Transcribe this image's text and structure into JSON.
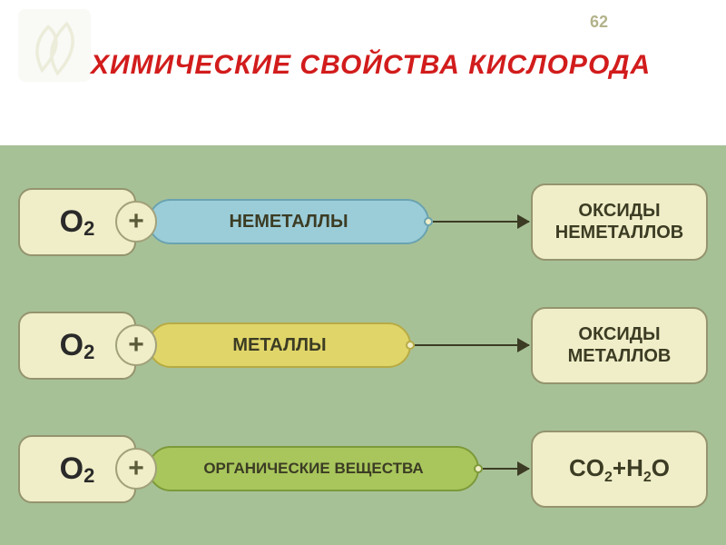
{
  "page_number": "62",
  "deco_bg": "#f9f9f5",
  "deco_stroke": "#ececda",
  "title_text": "ХИМИЧЕСКИЕ СВОЙСТВА КИСЛОРОДА",
  "title_color": "#d21c1c",
  "diagram_bg": "#a7c197",
  "o2_label_main": "O",
  "o2_label_sub": "2",
  "o2_box_bg": "#f0eec8",
  "o2_box_border": "#94946e",
  "plus_symbol": "+",
  "product_box_bg": "#f0eec8",
  "product_box_border": "#94946e",
  "rows": [
    {
      "pill_text": "НЕМЕТАЛЛЫ",
      "pill_bg": "#9bcdd9",
      "pill_border": "#6aa3b0",
      "pill_width": 310,
      "pill_fontsize": 20,
      "product_lines": [
        "ОКСИДЫ",
        "НЕМЕТАЛЛОВ"
      ],
      "product_formula": false
    },
    {
      "pill_text": "МЕТАЛЛЫ",
      "pill_bg": "#e0d569",
      "pill_border": "#b7ab45",
      "pill_width": 290,
      "pill_fontsize": 20,
      "product_lines": [
        "ОКСИДЫ",
        "МЕТАЛЛОВ"
      ],
      "product_formula": false
    },
    {
      "pill_text": "ОРГАНИЧЕСКИЕ ВЕЩЕСТВА",
      "pill_bg": "#a8c65c",
      "pill_border": "#7d9a3a",
      "pill_width": 365,
      "pill_fontsize": 17,
      "product_formula": true,
      "formula_parts": [
        "CO",
        "2",
        "+H",
        "2",
        "O"
      ]
    }
  ]
}
